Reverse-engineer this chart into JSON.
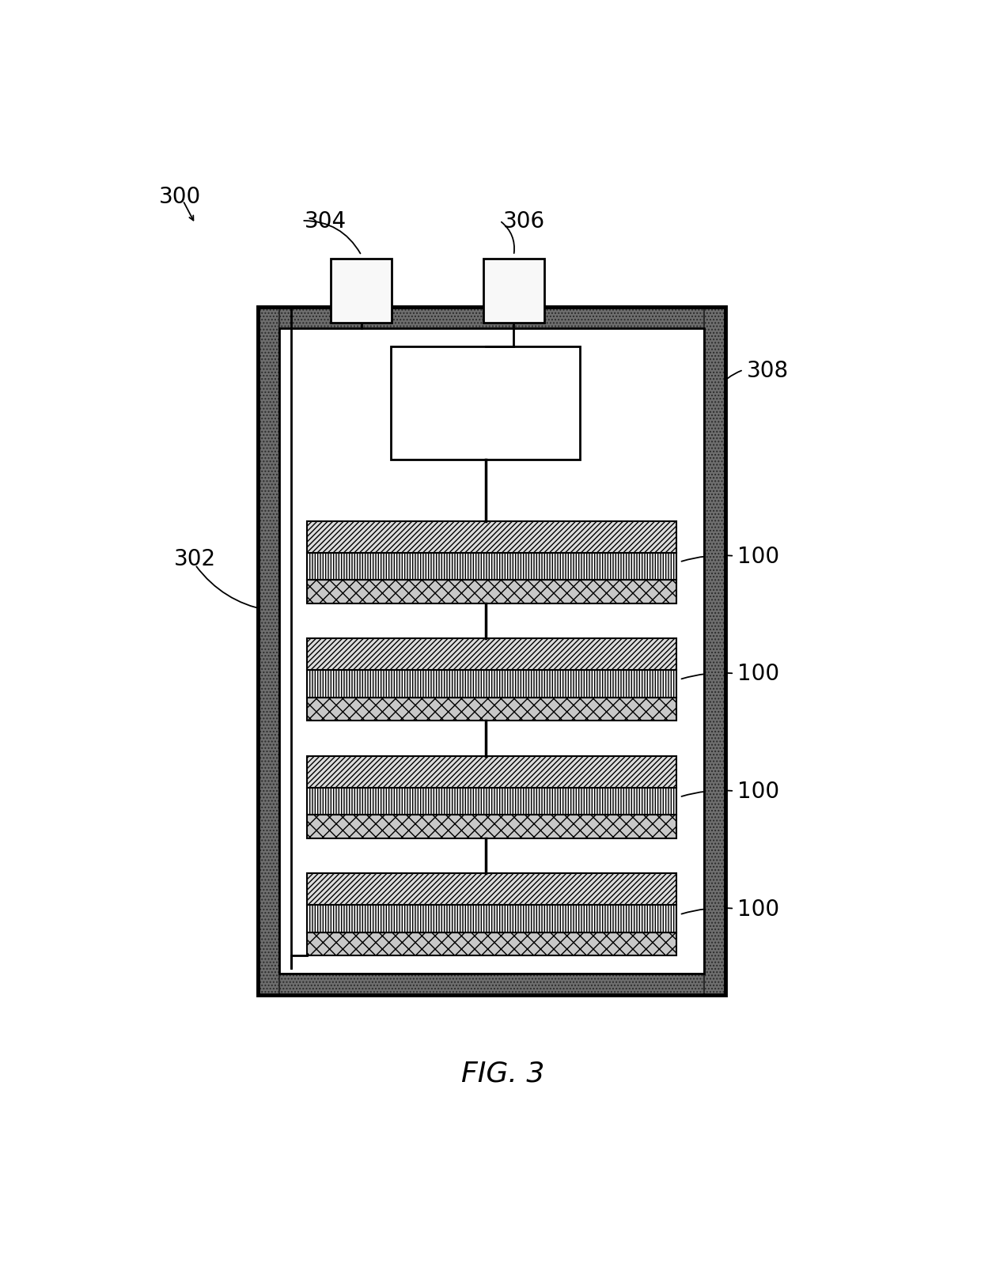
{
  "title": "FIG. 3",
  "background_color": "#ffffff",
  "fig_width": 12.4,
  "fig_height": 16.08,
  "label_300": "300",
  "label_302": "302",
  "label_304": "304",
  "label_306": "306",
  "label_308": "308",
  "label_100": "100",
  "case_shell_color": "#7a7a7a",
  "case_shell_hatch_color": "#444444",
  "line_color": "#000000",
  "terminal_fill": "#f5f5f5",
  "bms_fill": "#ffffff",
  "cell_diag_fill": "#d8d8d8",
  "cell_vert_fill": "#f2f2f2",
  "cell_dot_fill": "#b8b8b8",
  "annotation_line_color": "#1a1a1a"
}
